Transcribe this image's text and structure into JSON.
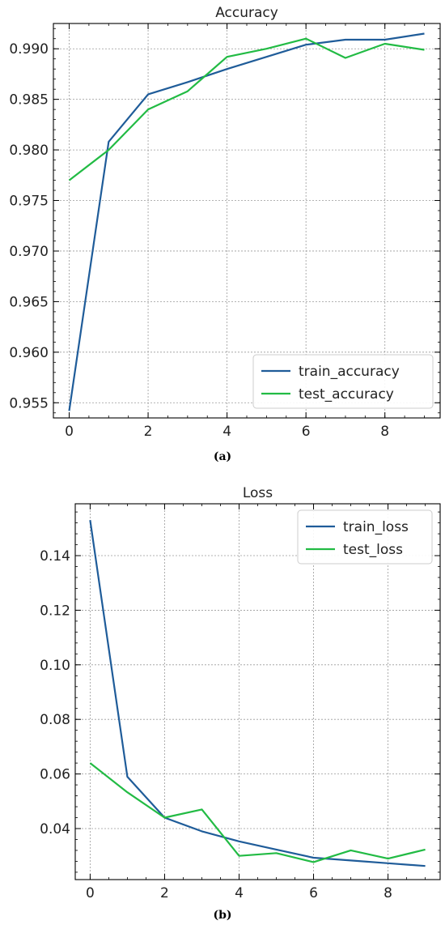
{
  "chart_data": [
    {
      "type": "line",
      "title": "Accuracy",
      "xlabel": "",
      "ylabel": "",
      "xlim": [
        -0.4,
        9.4
      ],
      "ylim": [
        0.9535,
        0.9925
      ],
      "xticks": [
        0,
        2,
        4,
        6,
        8
      ],
      "xtick_labels": [
        "0",
        "2",
        "4",
        "6",
        "8"
      ],
      "yticks": [
        0.955,
        0.96,
        0.965,
        0.97,
        0.975,
        0.98,
        0.985,
        0.99
      ],
      "ytick_labels": [
        "0.955",
        "0.960",
        "0.965",
        "0.970",
        "0.975",
        "0.980",
        "0.985",
        "0.990"
      ],
      "grid": true,
      "legend_position": "bottom-right",
      "x": [
        0,
        1,
        2,
        3,
        4,
        5,
        6,
        7,
        8,
        9
      ],
      "series": [
        {
          "name": "train_accuracy",
          "color": "#1f5c99",
          "values": [
            0.9542,
            0.9808,
            0.9855,
            0.9867,
            0.988,
            0.9892,
            0.9904,
            0.9909,
            0.9909,
            0.9915
          ]
        },
        {
          "name": "test_accuracy",
          "color": "#22bb44",
          "values": [
            0.977,
            0.98,
            0.984,
            0.9858,
            0.9892,
            0.99,
            0.991,
            0.9891,
            0.9905,
            0.9899
          ]
        }
      ],
      "caption": "(a)"
    },
    {
      "type": "line",
      "title": "Loss",
      "xlabel": "",
      "ylabel": "",
      "xlim": [
        -0.4,
        9.4
      ],
      "ylim": [
        0.0213,
        0.159
      ],
      "xticks": [
        0,
        2,
        4,
        6,
        8
      ],
      "xtick_labels": [
        "0",
        "2",
        "4",
        "6",
        "8"
      ],
      "yticks": [
        0.02,
        0.04,
        0.06,
        0.08,
        0.1,
        0.12,
        0.14
      ],
      "ytick_labels": [
        "0.02",
        "0.04",
        "0.06",
        "0.08",
        "0.10",
        "0.12",
        "0.14"
      ],
      "grid": true,
      "legend_position": "top-right",
      "x": [
        0,
        1,
        2,
        3,
        4,
        5,
        6,
        7,
        8,
        9
      ],
      "series": [
        {
          "name": "train_loss",
          "color": "#1f5c99",
          "values": [
            0.153,
            0.059,
            0.044,
            0.039,
            0.0353,
            0.0323,
            0.0293,
            0.0283,
            0.0273,
            0.0263
          ]
        },
        {
          "name": "test_loss",
          "color": "#22bb44",
          "values": [
            0.064,
            0.0533,
            0.044,
            0.047,
            0.03,
            0.031,
            0.0277,
            0.032,
            0.029,
            0.0323
          ]
        }
      ],
      "caption": "(b)"
    }
  ]
}
